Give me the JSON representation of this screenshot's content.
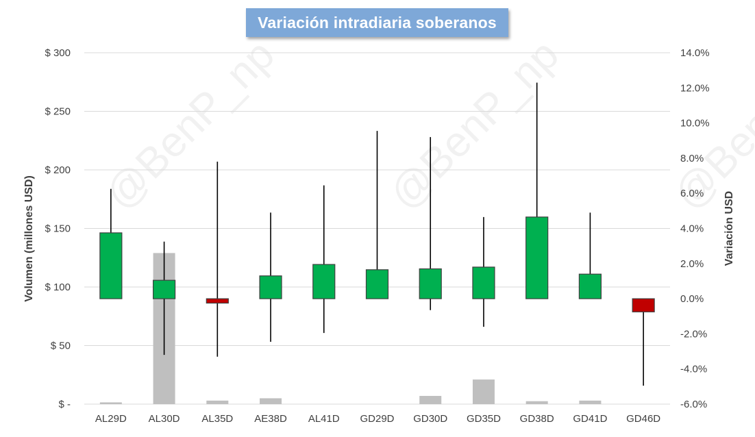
{
  "chart_data": {
    "type": "candlestick",
    "title": "Variación intradiaria soberanos",
    "categories": [
      "AL29D",
      "AL30D",
      "AL35D",
      "AE38D",
      "AL41D",
      "GD29D",
      "GD30D",
      "GD35D",
      "GD38D",
      "GD41D",
      "GD46D"
    ],
    "y_left": {
      "label": "Volumen (millones USD)",
      "ylim": [
        0,
        300
      ],
      "ticks": [
        0,
        50,
        100,
        150,
        200,
        250,
        300
      ],
      "tick_labels": [
        "$ -",
        "$ 50",
        "$ 100",
        "$ 150",
        "$ 200",
        "$ 250",
        "$ 300"
      ]
    },
    "y_right": {
      "label": "Variación USD",
      "ylim": [
        -6,
        14
      ],
      "ticks": [
        -6,
        -4,
        -2,
        0,
        2,
        4,
        6,
        8,
        10,
        12,
        14
      ],
      "tick_labels": [
        "-6.0%",
        "-4.0%",
        "-2.0%",
        "0.0%",
        "2.0%",
        "4.0%",
        "6.0%",
        "8.0%",
        "10.0%",
        "12.0%",
        "14.0%"
      ]
    },
    "volume": [
      1.5,
      129,
      3,
      5,
      0,
      0,
      7,
      21,
      2.5,
      3,
      0
    ],
    "open": [
      0,
      0,
      0,
      0,
      0,
      0,
      0,
      0,
      0,
      0,
      0
    ],
    "close": [
      3.75,
      1.05,
      -0.25,
      1.3,
      1.95,
      1.65,
      1.7,
      1.8,
      4.65,
      1.4,
      -0.75
    ],
    "high": [
      6.25,
      3.25,
      7.8,
      4.9,
      6.45,
      9.55,
      9.2,
      4.65,
      12.3,
      4.9,
      -0.75
    ],
    "low": [
      0,
      -3.2,
      -3.3,
      -2.45,
      -1.95,
      0,
      -0.65,
      -1.6,
      0,
      0,
      -4.95
    ],
    "colors": {
      "up": "#00b050",
      "down": "#c00000",
      "volume": "#bfbfbf",
      "wick": "#000000",
      "grid": "#d9d9d9"
    },
    "grid": true,
    "watermark": "@BenP_np"
  }
}
